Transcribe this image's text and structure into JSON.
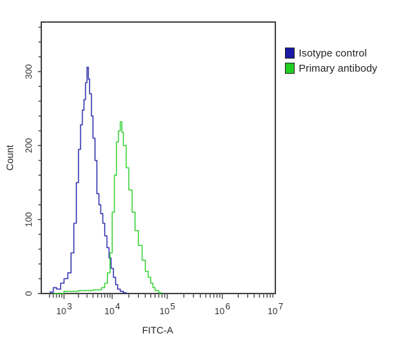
{
  "chart_data": {
    "type": "line",
    "title": "",
    "xlabel": "FITC-A",
    "ylabel": "Count",
    "xscale": "log",
    "xlim": [
      500,
      10000000
    ],
    "ylim": [
      0,
      367
    ],
    "x_ticks": [
      {
        "value": 1000,
        "base": "10",
        "exp": "3"
      },
      {
        "value": 10000,
        "base": "10",
        "exp": "4"
      },
      {
        "value": 100000,
        "base": "10",
        "exp": "5"
      },
      {
        "value": 1000000,
        "base": "10",
        "exp": "6"
      },
      {
        "value": 10000000,
        "base": "10",
        "exp": "7"
      }
    ],
    "y_ticks": [
      0,
      100,
      200,
      300
    ],
    "grid": false,
    "legend_position": "right-outside-top",
    "series": [
      {
        "name": "Isotype control",
        "color": "#1a1aa6",
        "x": [
          500,
          600,
          700,
          850,
          1000,
          1200,
          1400,
          1600,
          1800,
          2000,
          2200,
          2400,
          2600,
          2800,
          3000,
          3200,
          3400,
          3700,
          4000,
          4400,
          4800,
          5300,
          5800,
          6400,
          7000,
          7800,
          8600,
          9500,
          10500,
          11500,
          12500,
          14000,
          16000,
          18000
        ],
        "values": [
          2,
          8,
          6,
          14,
          20,
          28,
          55,
          95,
          150,
          195,
          228,
          248,
          262,
          285,
          306,
          290,
          270,
          240,
          210,
          180,
          135,
          120,
          108,
          95,
          78,
          62,
          48,
          34,
          22,
          12,
          6,
          3,
          1,
          0
        ]
      },
      {
        "name": "Primary antibody",
        "color": "#22cc22",
        "x": [
          600,
          1000,
          2000,
          4000,
          6000,
          7000,
          8000,
          9000,
          10000,
          11000,
          12000,
          13000,
          14000,
          15000,
          16000,
          18000,
          20000,
          23000,
          26000,
          30000,
          35000,
          40000,
          45000,
          50000,
          55000,
          60000,
          70000,
          80000
        ],
        "values": [
          0,
          3,
          4,
          5,
          8,
          14,
          28,
          55,
          110,
          160,
          205,
          220,
          232,
          218,
          200,
          170,
          140,
          110,
          85,
          65,
          45,
          30,
          22,
          14,
          8,
          4,
          1,
          0
        ]
      }
    ]
  },
  "legend": {
    "items": [
      {
        "label": "Isotype control",
        "color": "#1a1aa6"
      },
      {
        "label": "Primary antibody",
        "color": "#22cc22"
      }
    ]
  }
}
